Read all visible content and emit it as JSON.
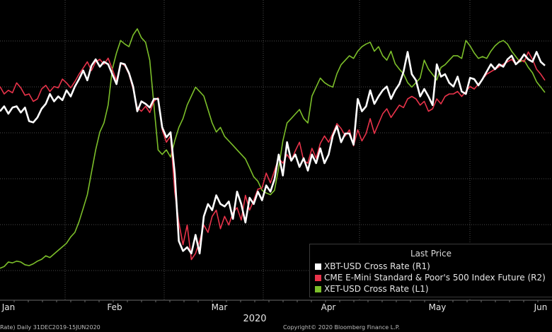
{
  "chart_data": {
    "type": "line",
    "title": "",
    "year_label": "2020",
    "x_tick_labels": [
      "Jan",
      "Feb",
      "Mar",
      "Apr",
      "May",
      "Jun"
    ],
    "grid": true,
    "legend_placement": "bottom-right",
    "legend_title": "Last Price",
    "series": [
      {
        "name": "XBT-USD Cross Rate  (R1)",
        "color": "#ffffff",
        "values": [
          0.3,
          0.34,
          0.28,
          0.33,
          0.34,
          0.29,
          0.33,
          0.22,
          0.21,
          0.25,
          0.32,
          0.36,
          0.44,
          0.38,
          0.42,
          0.39,
          0.47,
          0.42,
          0.5,
          0.56,
          0.63,
          0.55,
          0.67,
          0.72,
          0.66,
          0.7,
          0.68,
          0.6,
          0.52,
          0.69,
          0.68,
          0.61,
          0.5,
          0.3,
          0.38,
          0.36,
          0.33,
          0.4,
          0.4,
          0.17,
          0.09,
          0.13,
          -0.2,
          -0.75,
          -0.83,
          -0.8,
          -0.85,
          -0.7,
          -0.85,
          -0.55,
          -0.45,
          -0.5,
          -0.38,
          -0.45,
          -0.47,
          -0.43,
          -0.57,
          -0.35,
          -0.45,
          -0.6,
          -0.4,
          -0.45,
          -0.35,
          -0.42,
          -0.3,
          -0.35,
          -0.25,
          -0.05,
          -0.22,
          0.05,
          -0.1,
          -0.05,
          -0.15,
          -0.08,
          -0.18,
          -0.05,
          -0.12,
          0.0,
          -0.12,
          -0.05,
          0.1,
          0.18,
          0.05,
          0.12,
          0.12,
          0.03,
          0.4,
          0.3,
          0.34,
          0.47,
          0.36,
          0.42,
          0.47,
          0.5,
          0.4,
          0.47,
          0.52,
          0.62,
          0.78,
          0.6,
          0.55,
          0.42,
          0.48,
          0.42,
          0.35,
          0.68,
          0.58,
          0.6,
          0.53,
          0.5,
          0.58,
          0.46,
          0.44,
          0.57,
          0.56,
          0.51,
          0.56,
          0.62,
          0.68,
          0.64,
          0.68,
          0.66,
          0.72,
          0.75,
          0.68,
          0.71,
          0.76,
          0.72,
          0.7,
          0.78,
          0.7,
          0.67
        ]
      },
      {
        "name": "CME E-Mini Standard & Poor's 500 Index Future  (R2)",
        "color": "#e8334a",
        "values": [
          0.5,
          0.44,
          0.47,
          0.45,
          0.53,
          0.49,
          0.43,
          0.44,
          0.38,
          0.4,
          0.48,
          0.51,
          0.46,
          0.5,
          0.49,
          0.56,
          0.53,
          0.49,
          0.54,
          0.6,
          0.65,
          0.7,
          0.63,
          0.7,
          0.72,
          0.68,
          0.73,
          0.64,
          0.55,
          0.69,
          0.67,
          0.6,
          0.48,
          0.33,
          0.3,
          0.34,
          0.29,
          0.38,
          0.41,
          0.15,
          0.05,
          0.1,
          -0.35,
          -0.6,
          -0.78,
          -0.62,
          -0.9,
          -0.85,
          -0.75,
          -0.62,
          -0.68,
          -0.55,
          -0.5,
          -0.65,
          -0.55,
          -0.62,
          -0.52,
          -0.48,
          -0.58,
          -0.38,
          -0.5,
          -0.42,
          -0.33,
          -0.32,
          -0.2,
          -0.28,
          -0.18,
          -0.08,
          -0.12,
          -0.05,
          -0.1,
          -0.02,
          0.05,
          -0.1,
          -0.12,
          0.0,
          -0.08,
          0.04,
          0.1,
          0.05,
          0.12,
          0.2,
          0.16,
          0.1,
          0.15,
          0.02,
          0.15,
          0.06,
          0.12,
          0.24,
          0.12,
          0.2,
          0.28,
          0.32,
          0.25,
          0.3,
          0.35,
          0.33,
          0.4,
          0.42,
          0.4,
          0.35,
          0.38,
          0.3,
          0.32,
          0.4,
          0.36,
          0.42,
          0.44,
          0.44,
          0.46,
          0.42,
          0.46,
          0.5,
          0.48,
          0.52,
          0.56,
          0.6,
          0.62,
          0.64,
          0.66,
          0.68,
          0.7,
          0.72,
          0.68,
          0.72,
          0.7,
          0.78,
          0.72,
          0.64,
          0.6,
          0.55
        ]
      },
      {
        "name": "XET-USD Cross Rate  (L1)",
        "color": "#7cbf2a",
        "values": [
          8,
          10,
          15,
          14,
          16,
          15,
          12,
          11,
          13,
          16,
          18,
          22,
          20,
          24,
          28,
          32,
          36,
          43,
          48,
          60,
          75,
          90,
          115,
          140,
          160,
          170,
          190,
          230,
          248,
          262,
          258,
          255,
          268,
          275,
          265,
          260,
          240,
          190,
          140,
          135,
          140,
          132,
          150,
          165,
          175,
          190,
          200,
          210,
          205,
          200,
          185,
          170,
          160,
          165,
          155,
          150,
          145,
          140,
          135,
          130,
          120,
          110,
          105,
          95,
          92,
          90,
          95,
          120,
          150,
          170,
          175,
          180,
          185,
          175,
          170,
          200,
          210,
          220,
          215,
          212,
          210,
          225,
          235,
          240,
          245,
          242,
          250,
          255,
          258,
          260,
          250,
          255,
          245,
          240,
          250,
          236,
          230,
          225,
          215,
          210,
          215,
          220,
          240,
          230,
          224,
          218,
          232,
          235,
          240,
          245,
          245,
          242,
          262,
          256,
          248,
          242,
          244,
          242,
          250,
          256,
          260,
          262,
          258,
          250,
          244,
          238,
          240,
          232,
          226,
          216,
          210,
          204
        ]
      }
    ],
    "footer_left": "Rate)  Daily 31DEC2019-15JUN2020",
    "footer_right": "Copyright© 2020 Bloomberg Finance L.P."
  }
}
